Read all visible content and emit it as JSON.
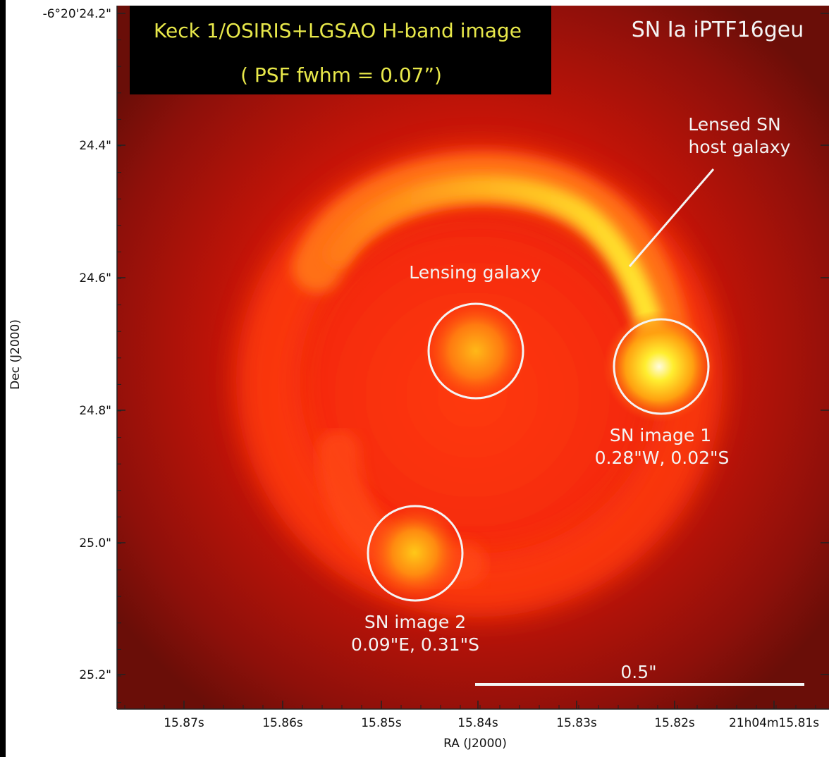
{
  "header": {
    "title_line1": "Keck 1/OSIRIS+LGSAO H-band image",
    "title_line2": "( PSF fwhm = 0.07”)",
    "object_name": "SN Ia iPTF16geu",
    "title_color": "#e8e84a"
  },
  "axes": {
    "ylabel": "Dec (J2000)",
    "xlabel": "RA (J2000)",
    "dec_ticks": [
      "-6°20'24.2\"",
      "24.4\"",
      "24.6\"",
      "24.8\"",
      "25.0\"",
      "25.2\""
    ],
    "ra_ticks": [
      "15.87s",
      "15.86s",
      "15.85s",
      "15.84s",
      "15.83s",
      "15.82s",
      "21h04m15.81s"
    ]
  },
  "annotations": {
    "host_line1": "Lensed SN",
    "host_line2": "host galaxy",
    "lensing_galaxy": "Lensing galaxy",
    "sn1_line1": "SN image 1",
    "sn1_line2": "0.28\"W, 0.02\"S",
    "sn2_line1": "SN image 2",
    "sn2_line2": "0.09\"E, 0.31\"S",
    "scale_bar": "0.5\""
  },
  "colormap": {
    "background": "#7a1008",
    "mid": "#ff3010",
    "bright": "#ffee30",
    "peak": "#fffde0"
  }
}
